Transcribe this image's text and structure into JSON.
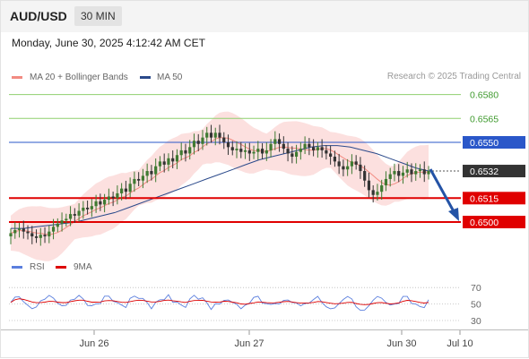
{
  "header": {
    "symbol": "AUD/USD",
    "timeframe": "30 MIN"
  },
  "timestamp": "Monday, June 30, 2025 4:12:42 AM CET",
  "legend": {
    "ma20": {
      "label": "MA 20 + Bollinger Bands",
      "color": "#f28b82"
    },
    "ma50": {
      "label": "MA 50",
      "color": "#2b4a8b"
    },
    "rsi": {
      "label": "RSI",
      "color": "#5b7fde"
    },
    "rsi9": {
      "label": "9MA",
      "color": "#dd0000"
    }
  },
  "credit": "Research © 2025 Trading Central",
  "chart_data": {
    "type": "candlestick",
    "price_axis": {
      "min": 0.6485,
      "max": 0.659
    },
    "x_labels": [
      "Jun 26",
      "Jun 27",
      "Jun 30",
      "Jul 10"
    ],
    "levels": [
      {
        "value": 0.658,
        "label": "0.6580",
        "kind": "target"
      },
      {
        "value": 0.6565,
        "label": "0.6565",
        "kind": "target"
      },
      {
        "value": 0.655,
        "label": "0.6550",
        "kind": "pivot"
      },
      {
        "value": 0.6532,
        "label": "0.6532",
        "kind": "last"
      },
      {
        "value": 0.6515,
        "label": "0.6515",
        "kind": "support"
      },
      {
        "value": 0.65,
        "label": "0.6500",
        "kind": "support"
      }
    ],
    "close_path": [
      0.6493,
      0.6495,
      0.6496,
      0.6494,
      0.6493,
      0.6491,
      0.649,
      0.6492,
      0.6491,
      0.6494,
      0.6497,
      0.6499,
      0.6501,
      0.6502,
      0.6505,
      0.6504,
      0.6507,
      0.6509,
      0.6508,
      0.651,
      0.6513,
      0.6511,
      0.6514,
      0.6516,
      0.6515,
      0.6518,
      0.6521,
      0.6519,
      0.6524,
      0.6527,
      0.6526,
      0.6529,
      0.6532,
      0.653,
      0.6535,
      0.6538,
      0.6536,
      0.654,
      0.6538,
      0.6542,
      0.6545,
      0.6543,
      0.6547,
      0.6551,
      0.6549,
      0.6553,
      0.6556,
      0.6553,
      0.6556,
      0.6553,
      0.655,
      0.6547,
      0.6545,
      0.6546,
      0.6544,
      0.6545,
      0.6543,
      0.6544,
      0.6546,
      0.6543,
      0.6545,
      0.6549,
      0.6552,
      0.6549,
      0.6546,
      0.6543,
      0.6541,
      0.6544,
      0.6546,
      0.6549,
      0.6547,
      0.6545,
      0.6547,
      0.6545,
      0.6543,
      0.6541,
      0.6538,
      0.6535,
      0.6533,
      0.6535,
      0.6538,
      0.6536,
      0.6532,
      0.6526,
      0.652,
      0.6517,
      0.6519,
      0.6523,
      0.6527,
      0.653,
      0.6532,
      0.6529,
      0.6531,
      0.6533,
      0.653,
      0.6532,
      0.6533,
      0.653,
      0.6532
    ],
    "ma50_path": [
      0.6496,
      0.6496,
      0.6497,
      0.6498,
      0.6499,
      0.65,
      0.6502,
      0.6504,
      0.6506,
      0.6509,
      0.6512,
      0.6515,
      0.6518,
      0.6521,
      0.6524,
      0.6527,
      0.653,
      0.6533,
      0.6536,
      0.6539,
      0.6541,
      0.6543,
      0.6545,
      0.6547,
      0.6548,
      0.6548,
      0.6547,
      0.6545,
      0.6543,
      0.654,
      0.6537,
      0.6534,
      0.6532
    ],
    "rsi": {
      "ticks": [
        70,
        50,
        30
      ],
      "range": [
        20,
        80
      ]
    }
  }
}
